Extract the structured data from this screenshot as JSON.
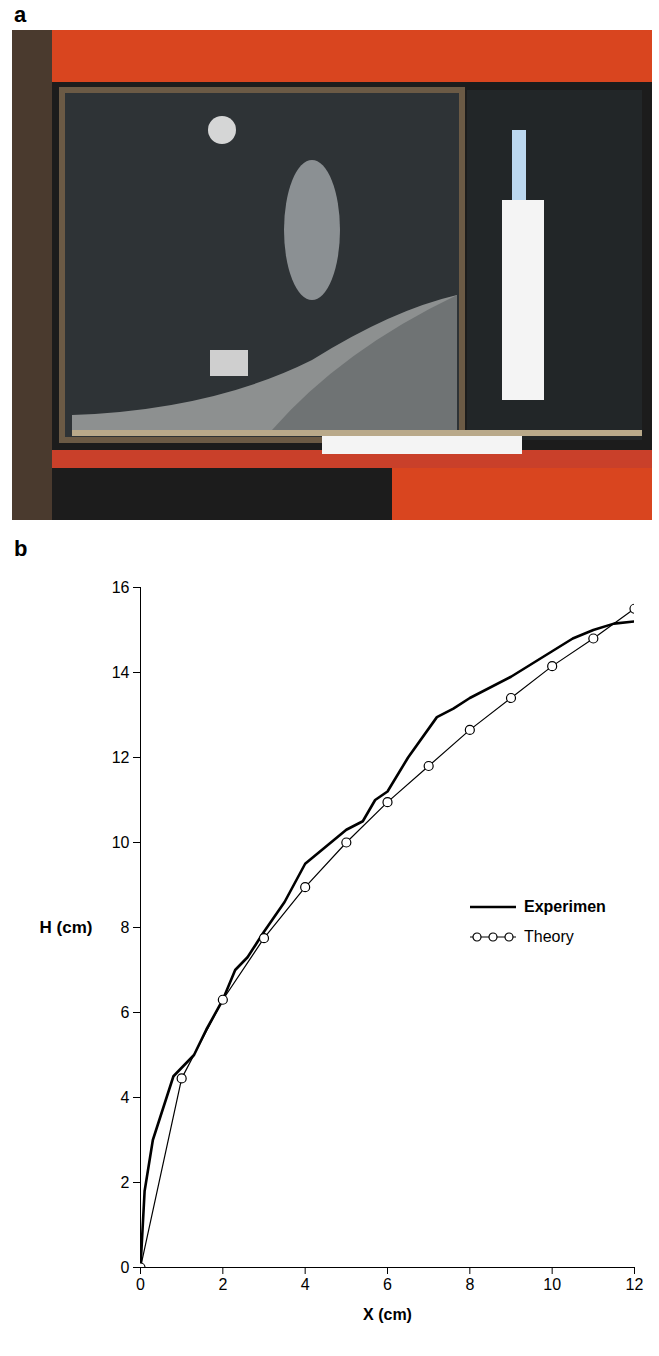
{
  "figure": {
    "panel_labels": [
      "a",
      "b"
    ]
  },
  "chart_data": {
    "type": "line",
    "x_label": "X (cm)",
    "y_label": "H (cm)",
    "xlim": [
      0,
      12
    ],
    "ylim": [
      0,
      16
    ],
    "xticks": [
      0,
      2,
      4,
      6,
      8,
      10,
      12
    ],
    "yticks": [
      0,
      2,
      4,
      6,
      8,
      10,
      12,
      14,
      16
    ],
    "legend": "right",
    "series": [
      {
        "name": "Experimen",
        "color": "#000000",
        "marker": "none",
        "line_style": "solid",
        "x": [
          0,
          0.1,
          0.3,
          0.8,
          1,
          1.3,
          1.6,
          2,
          2.3,
          2.6,
          3,
          3.5,
          4,
          4.5,
          5,
          5.4,
          5.7,
          6,
          6.5,
          7.2,
          7.6,
          8,
          9,
          9.5,
          10,
          10.5,
          11,
          11.5,
          12
        ],
        "values": [
          0,
          1.8,
          3,
          4.5,
          4.7,
          5,
          5.6,
          6.3,
          7,
          7.3,
          7.9,
          8.6,
          9.5,
          9.9,
          10.3,
          10.5,
          11,
          11.2,
          12,
          12.95,
          13.15,
          13.4,
          13.9,
          14.2,
          14.5,
          14.8,
          15,
          15.15,
          15.2
        ]
      },
      {
        "name": "Theory",
        "color": "#000000",
        "marker": "circle",
        "line_style": "solid",
        "x": [
          0,
          1,
          2,
          3,
          4,
          5,
          6,
          7,
          8,
          9,
          10,
          11,
          12
        ],
        "values": [
          0,
          4.45,
          6.3,
          7.75,
          8.95,
          10,
          10.95,
          11.8,
          12.65,
          13.4,
          14.15,
          14.8,
          15.5
        ]
      }
    ]
  }
}
